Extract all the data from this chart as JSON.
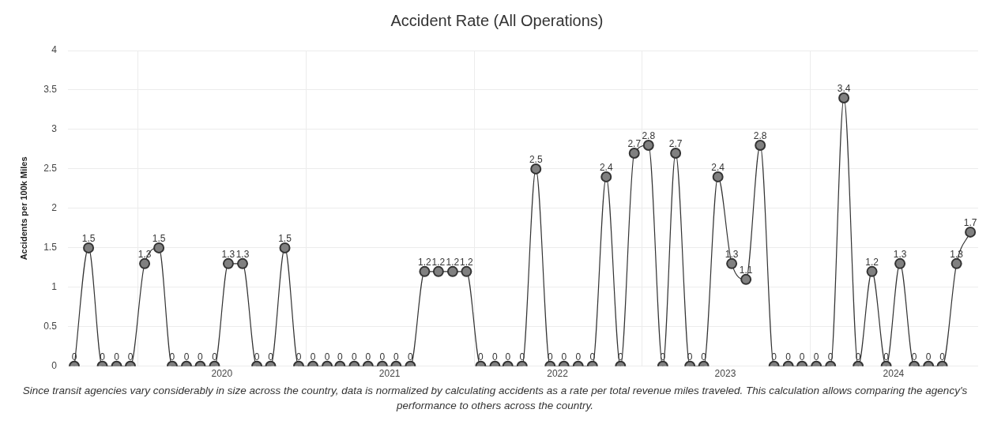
{
  "chart_data": {
    "type": "line",
    "title": "Accident Rate (All Operations)",
    "ylabel": "Accidents per 100k Miles",
    "x": [
      "2019-08-15",
      "2019-09-15",
      "2019-10-15",
      "2019-11-15",
      "2019-12-15",
      "2020-01-15",
      "2020-02-15",
      "2020-03-15",
      "2020-04-15",
      "2020-05-15",
      "2020-06-15",
      "2020-07-15",
      "2020-08-15",
      "2020-09-15",
      "2020-10-15",
      "2020-11-15",
      "2020-12-15",
      "2021-01-15",
      "2021-02-15",
      "2021-03-15",
      "2021-04-15",
      "2021-05-15",
      "2021-06-15",
      "2021-07-15",
      "2021-08-15",
      "2021-09-15",
      "2021-10-15",
      "2021-11-15",
      "2021-12-15",
      "2022-01-15",
      "2022-02-15",
      "2022-03-15",
      "2022-04-15",
      "2022-05-15",
      "2022-06-15",
      "2022-07-15",
      "2022-08-15",
      "2022-09-15",
      "2022-10-15",
      "2022-11-15",
      "2022-12-15",
      "2023-01-15",
      "2023-02-15",
      "2023-03-15",
      "2023-04-15",
      "2023-05-15",
      "2023-06-15",
      "2023-07-15",
      "2023-08-15",
      "2023-09-15",
      "2023-10-15",
      "2023-11-15",
      "2023-12-15",
      "2024-01-15",
      "2024-02-15",
      "2024-03-15",
      "2024-04-15",
      "2024-05-15",
      "2024-06-15",
      "2024-07-15",
      "2024-08-15",
      "2024-09-15",
      "2024-10-15",
      "2024-11-15",
      "2024-12-15"
    ],
    "series": [
      {
        "color": "#808080",
        "values": [
          0,
          1.5,
          0,
          0,
          0,
          1.3,
          1.5,
          0,
          0,
          0,
          0,
          1.3,
          1.3,
          0,
          0,
          1.5,
          0,
          0,
          0,
          0,
          0,
          0,
          0,
          0,
          0,
          1.2,
          1.2,
          1.2,
          1.2,
          0,
          0,
          0,
          0,
          2.5,
          0,
          0,
          0,
          0,
          2.4,
          0,
          2.7,
          2.8,
          0,
          2.7,
          0,
          0,
          2.4,
          1.3,
          1.1,
          2.8,
          0,
          0,
          0,
          0,
          0,
          3.4,
          0,
          1.2,
          0,
          1.3,
          0,
          0,
          0,
          1.3,
          1.7
        ]
      }
    ],
    "xlim": [
      "2019-08-01",
      "2025-01-01"
    ],
    "xticks": [
      {
        "value": "2020-01-01",
        "label": null
      },
      {
        "value": "2020-07-01",
        "label": "2020"
      },
      {
        "value": "2021-01-01",
        "label": null
      },
      {
        "value": "2021-07-01",
        "label": "2021"
      },
      {
        "value": "2022-01-01",
        "label": null
      },
      {
        "value": "2022-07-01",
        "label": "2022"
      },
      {
        "value": "2023-01-01",
        "label": null
      },
      {
        "value": "2023-07-01",
        "label": "2023"
      },
      {
        "value": "2024-01-01",
        "label": null
      },
      {
        "value": "2024-07-01",
        "label": "2024"
      }
    ],
    "ylim": [
      0,
      4
    ],
    "yticks": [
      0,
      0.5,
      1,
      1.5,
      2,
      2.5,
      3,
      3.5,
      4
    ],
    "grid": true,
    "legend": false,
    "marker": "circle",
    "line_style": "solid",
    "data_labels": true,
    "annotations": [
      "Since transit agencies vary considerably in size across the country, data is normalized by calculating accidents as a rate per total revenue miles traveled. This calculation allows comparing the agency's performance to others across the country."
    ]
  }
}
